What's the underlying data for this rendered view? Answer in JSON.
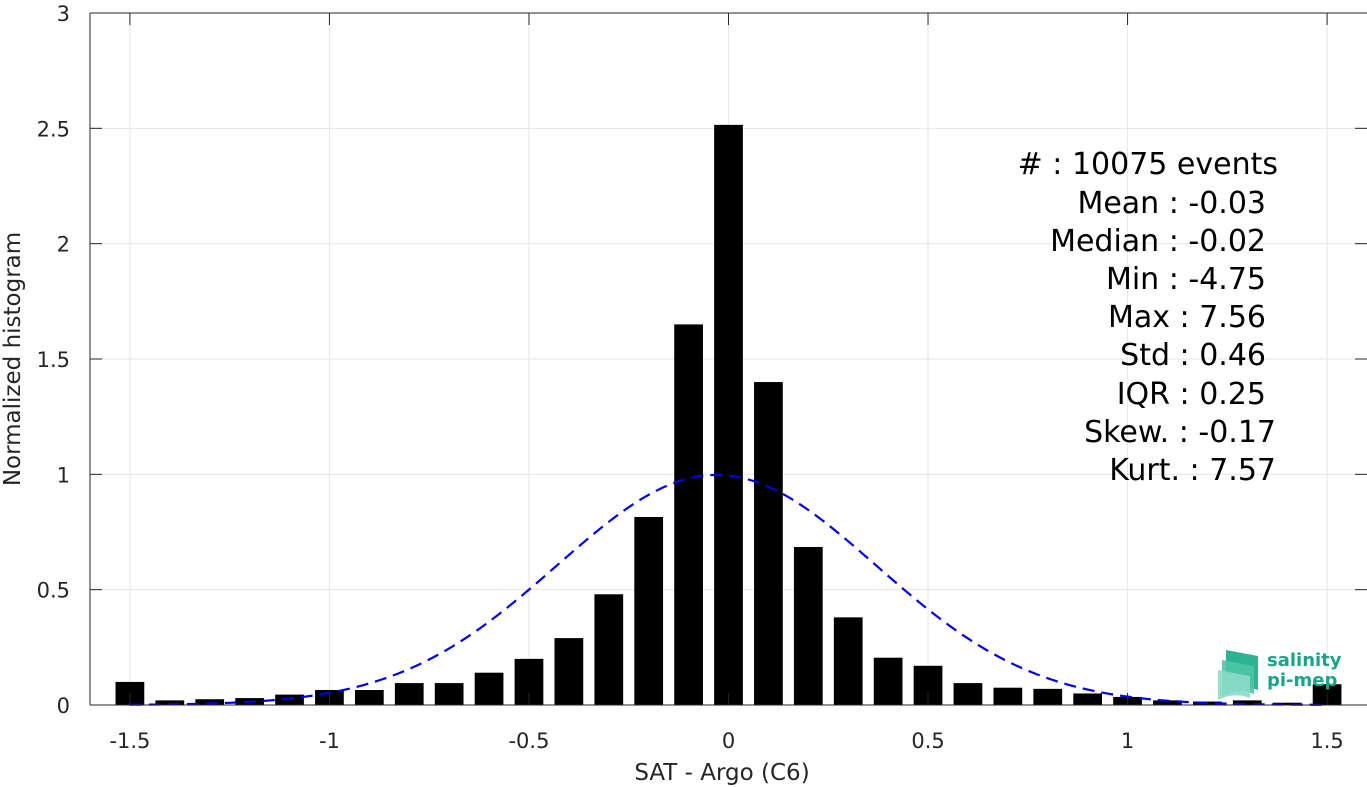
{
  "chart_data": {
    "type": "bar",
    "xlabel": "SAT - Argo (C6)",
    "ylabel": "Normalized histogram",
    "xlim": [
      -1.6,
      1.6
    ],
    "ylim": [
      0,
      3
    ],
    "x_ticks": [
      -1.5,
      -1,
      -0.5,
      0,
      0.5,
      1,
      1.5
    ],
    "x_tick_labels": [
      "-1.5",
      "-1",
      "-0.5",
      "0",
      "0.5",
      "1",
      "1.5"
    ],
    "y_ticks": [
      0,
      0.5,
      1,
      1.5,
      2,
      2.5,
      3
    ],
    "y_tick_labels": [
      "0",
      "0.5",
      "1",
      "1.5",
      "2",
      "2.5",
      "3"
    ],
    "grid": true,
    "bar_color": "#000000",
    "bins": [
      -1.5,
      -1.4,
      -1.3,
      -1.2,
      -1.1,
      -1.0,
      -0.9,
      -0.8,
      -0.7,
      -0.6,
      -0.5,
      -0.4,
      -0.3,
      -0.2,
      -0.1,
      0.0,
      0.1,
      0.2,
      0.3,
      0.4,
      0.5,
      0.6,
      0.7,
      0.8,
      0.9,
      1.0,
      1.1,
      1.2,
      1.3,
      1.4,
      1.5
    ],
    "values": [
      0.1,
      0.02,
      0.025,
      0.03,
      0.045,
      0.065,
      0.065,
      0.095,
      0.095,
      0.14,
      0.2,
      0.29,
      0.48,
      0.815,
      1.65,
      2.515,
      1.4,
      0.685,
      0.38,
      0.205,
      0.17,
      0.095,
      0.075,
      0.07,
      0.05,
      0.035,
      0.02,
      0.015,
      0.02,
      0.01,
      0.09
    ],
    "fit_curve": {
      "type": "normal",
      "mean": -0.03,
      "std": 0.4,
      "color": "#0000e6",
      "style": "dashed",
      "x_range": [
        -1.5,
        1.5
      ]
    },
    "annotation_lines": [
      "#  : 10075 events",
      "Mean : -0.03",
      "Median : -0.02",
      "Min : -4.75",
      "Max : 7.56",
      "Std : 0.46",
      "IQR : 0.25",
      "Skew. : -0.17",
      "Kurt. : 7.57"
    ]
  },
  "logo": {
    "line1": "salinity",
    "line2": "pi-mep",
    "color": "#1aa58a"
  }
}
